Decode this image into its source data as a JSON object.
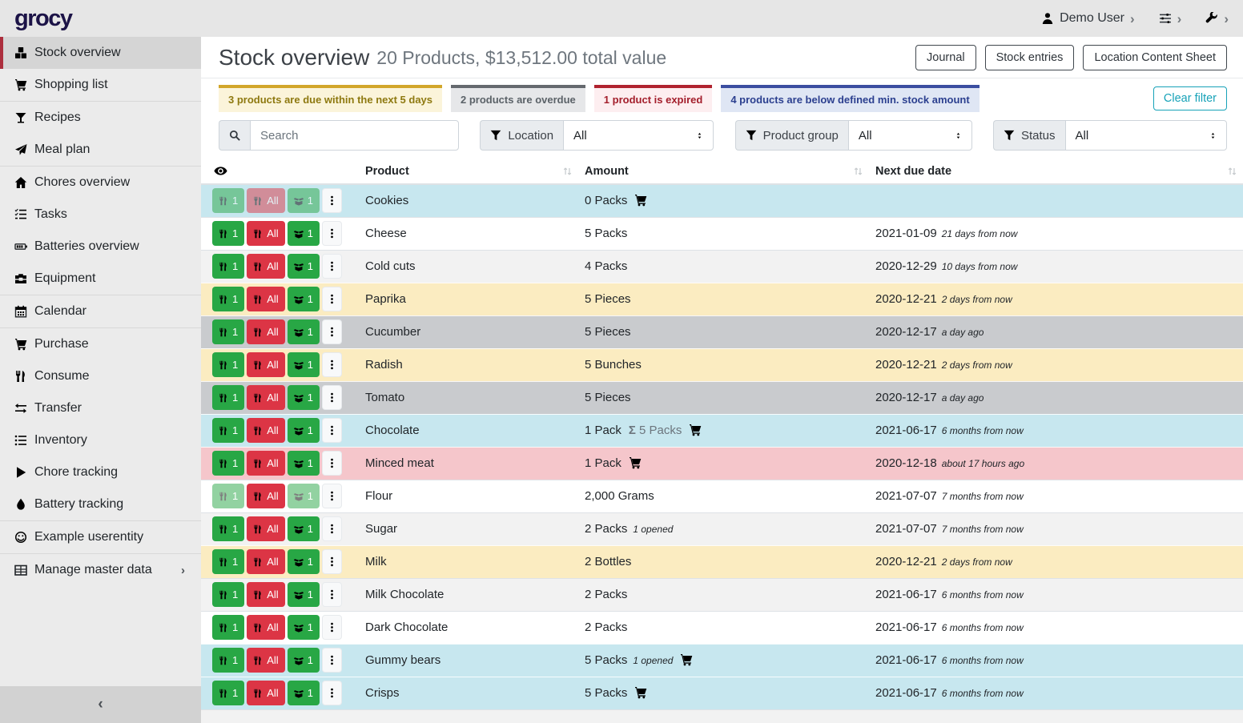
{
  "topbar": {
    "logo": "grocy",
    "user_label": "Demo User",
    "menus": [
      {
        "icon": "person-icon",
        "label": "Demo User"
      },
      {
        "icon": "sliders-icon",
        "label": ""
      },
      {
        "icon": "wrench-icon",
        "label": ""
      }
    ]
  },
  "sidebar": {
    "items": [
      {
        "label": "Stock overview",
        "icon": "boxes",
        "active": true
      },
      {
        "label": "Shopping list",
        "icon": "cart",
        "divider_after": true
      },
      {
        "label": "Recipes",
        "icon": "cocktail"
      },
      {
        "label": "Meal plan",
        "icon": "paper-plane",
        "divider_after": true
      },
      {
        "label": "Chores overview",
        "icon": "home"
      },
      {
        "label": "Tasks",
        "icon": "tasks"
      },
      {
        "label": "Batteries overview",
        "icon": "battery"
      },
      {
        "label": "Equipment",
        "icon": "toolbox",
        "divider_after": true
      },
      {
        "label": "Calendar",
        "icon": "calendar",
        "divider_after": true
      },
      {
        "label": "Purchase",
        "icon": "cart"
      },
      {
        "label": "Consume",
        "icon": "utensils"
      },
      {
        "label": "Transfer",
        "icon": "exchange"
      },
      {
        "label": "Inventory",
        "icon": "list"
      },
      {
        "label": "Chore tracking",
        "icon": "play"
      },
      {
        "label": "Battery tracking",
        "icon": "droplet",
        "divider_after": true
      },
      {
        "label": "Example userentity",
        "icon": "smiley",
        "divider_after": true
      },
      {
        "label": "Manage master data",
        "icon": "table",
        "chevron": true
      }
    ],
    "collapse_glyph": "‹"
  },
  "header": {
    "title": "Stock overview",
    "subtitle": "20 Products, $13,512.00 total value",
    "buttons": [
      "Journal",
      "Stock entries",
      "Location Content Sheet"
    ]
  },
  "alerts": [
    {
      "type": "warning",
      "text": "3 products are due within the next 5 days"
    },
    {
      "type": "secondary",
      "text": "2 products are overdue"
    },
    {
      "type": "danger",
      "text": "1 product is expired"
    },
    {
      "type": "info-blue",
      "text": "4 products are below defined min. stock amount"
    }
  ],
  "clear_filter_label": "Clear filter",
  "filters": {
    "search_placeholder": "Search",
    "location_label": "Location",
    "location_value": "All",
    "product_group_label": "Product group",
    "product_group_value": "All",
    "status_label": "Status",
    "status_value": "All"
  },
  "colors": {
    "success": "#28a745",
    "danger": "#dc3545",
    "clear_filter_accent": "#17a2b8",
    "active_nav_accent": "#ac2e3d",
    "row_info": "#c7e7ef",
    "row_warning": "#fbecc1",
    "row_secondary": "#c9cbce",
    "row_danger": "#f5c6cb"
  },
  "table": {
    "columns": [
      "Product",
      "Amount",
      "Next due date"
    ],
    "row_buttons": {
      "consume_one": "1",
      "consume_all": "All",
      "open_one": "1"
    },
    "rows": [
      {
        "product": "Cookies",
        "amount": "0 Packs",
        "cart": true,
        "date": "",
        "relative": "",
        "highlight": "info",
        "muted": [
          "consume_one",
          "consume_all",
          "open_one"
        ]
      },
      {
        "product": "Cheese",
        "amount": "5 Packs",
        "date": "2021-01-09",
        "relative": "21 days from now"
      },
      {
        "product": "Cold cuts",
        "amount": "4 Packs",
        "date": "2020-12-29",
        "relative": "10 days from now"
      },
      {
        "product": "Paprika",
        "amount": "5 Pieces",
        "date": "2020-12-21",
        "relative": "2 days from now",
        "highlight": "warning"
      },
      {
        "product": "Cucumber",
        "amount": "5 Pieces",
        "date": "2020-12-17",
        "relative": "a day ago",
        "highlight": "secondary"
      },
      {
        "product": "Radish",
        "amount": "5 Bunches",
        "date": "2020-12-21",
        "relative": "2 days from now",
        "highlight": "warning"
      },
      {
        "product": "Tomato",
        "amount": "5 Pieces",
        "date": "2020-12-17",
        "relative": "a day ago",
        "highlight": "secondary"
      },
      {
        "product": "Chocolate",
        "amount": "1 Pack",
        "sum": "5 Packs",
        "cart": true,
        "date": "2021-06-17",
        "relative": "6 months from now",
        "highlight": "info"
      },
      {
        "product": "Minced meat",
        "amount": "1 Pack",
        "cart": true,
        "date": "2020-12-18",
        "relative": "about 17 hours ago",
        "highlight": "danger"
      },
      {
        "product": "Flour",
        "amount": "2,000 Grams",
        "date": "2021-07-07",
        "relative": "7 months from now",
        "muted": [
          "consume_one",
          "open_one"
        ]
      },
      {
        "product": "Sugar",
        "amount": "2 Packs",
        "opened": "1 opened",
        "date": "2021-07-07",
        "relative": "7 months from now"
      },
      {
        "product": "Milk",
        "amount": "2 Bottles",
        "date": "2020-12-21",
        "relative": "2 days from now",
        "highlight": "warning"
      },
      {
        "product": "Milk Chocolate",
        "amount": "2 Packs",
        "date": "2021-06-17",
        "relative": "6 months from now"
      },
      {
        "product": "Dark Chocolate",
        "amount": "2 Packs",
        "date": "2021-06-17",
        "relative": "6 months from now"
      },
      {
        "product": "Gummy bears",
        "amount": "5 Packs",
        "opened": "1 opened",
        "cart": true,
        "date": "2021-06-17",
        "relative": "6 months from now",
        "highlight": "info"
      },
      {
        "product": "Crisps",
        "amount": "5 Packs",
        "cart": true,
        "date": "2021-06-17",
        "relative": "6 months from now",
        "highlight": "info"
      }
    ]
  }
}
